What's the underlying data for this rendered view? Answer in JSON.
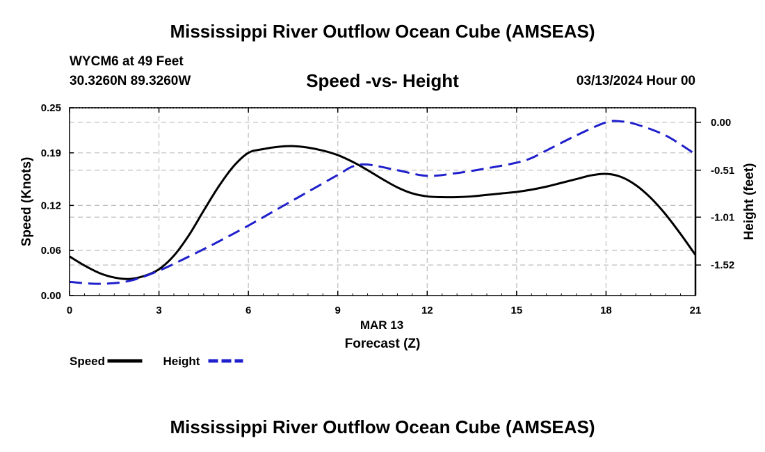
{
  "header": {
    "title": "Mississippi River Outflow Ocean Cube (AMSEAS)",
    "station": "WYCM6 at 49 Feet",
    "coords": "30.3260N  89.3260W",
    "subtitle": "Speed -vs- Height",
    "datetime": "03/13/2024 Hour 00"
  },
  "footer": {
    "title": "Mississippi River Outflow Ocean Cube (AMSEAS)"
  },
  "chart_data": {
    "type": "line",
    "title": "Speed -vs- Height",
    "xlabel_date": "MAR 13",
    "xlabel": "Forecast (Z)",
    "ylabel": "Speed (Knots)",
    "y2label": "Height (feet)",
    "xlim": [
      0,
      21
    ],
    "ylim": [
      0,
      0.25
    ],
    "y2lim": [
      -1.845,
      0.155
    ],
    "xticks": [
      0,
      3,
      6,
      9,
      12,
      15,
      18,
      21
    ],
    "xtick_labels": [
      "0",
      "3",
      "6",
      "9",
      "12",
      "15",
      "18",
      "21"
    ],
    "yticks": [
      0.0,
      0.06,
      0.12,
      0.19,
      0.25
    ],
    "ytick_labels": [
      "0.00",
      "0.06",
      "0.12",
      "0.19",
      "0.25"
    ],
    "y2ticks": [
      0.0,
      -0.51,
      -1.01,
      -1.52
    ],
    "y2tick_labels": [
      "0.00",
      "-0.51",
      "-1.01",
      "-1.52"
    ],
    "grid": true,
    "series": [
      {
        "name": "Speed",
        "axis": "left",
        "color": "#000000",
        "dash": "solid",
        "x": [
          0,
          0.5,
          1,
          1.5,
          2,
          2.5,
          3,
          3.5,
          4,
          4.5,
          5,
          5.5,
          6,
          6.5,
          7,
          7.5,
          8,
          8.5,
          9,
          9.5,
          10,
          10.5,
          11,
          11.5,
          12,
          12.5,
          13,
          13.5,
          14,
          14.5,
          15,
          15.5,
          16,
          16.5,
          17,
          17.5,
          18,
          18.5,
          19,
          19.5,
          20,
          20.5,
          21
        ],
        "values": [
          0.052,
          0.04,
          0.03,
          0.024,
          0.022,
          0.026,
          0.035,
          0.053,
          0.08,
          0.113,
          0.145,
          0.172,
          0.19,
          0.195,
          0.198,
          0.199,
          0.197,
          0.193,
          0.187,
          0.178,
          0.167,
          0.155,
          0.144,
          0.136,
          0.132,
          0.131,
          0.131,
          0.132,
          0.134,
          0.136,
          0.138,
          0.141,
          0.145,
          0.15,
          0.155,
          0.16,
          0.162,
          0.158,
          0.147,
          0.13,
          0.108,
          0.082,
          0.054
        ]
      },
      {
        "name": "Height",
        "axis": "right",
        "color": "#1f1fcc",
        "dash": "dashed",
        "x": [
          0,
          1,
          2,
          3,
          4,
          5,
          6,
          7,
          8,
          9,
          9.5,
          10,
          11,
          12,
          13,
          14,
          15,
          15.5,
          16,
          17,
          18,
          18.5,
          19,
          20,
          21
        ],
        "values": [
          -1.7,
          -1.72,
          -1.69,
          -1.58,
          -1.43,
          -1.27,
          -1.1,
          -0.92,
          -0.74,
          -0.56,
          -0.47,
          -0.45,
          -0.51,
          -0.57,
          -0.54,
          -0.49,
          -0.43,
          -0.38,
          -0.3,
          -0.14,
          0.0,
          0.01,
          -0.02,
          -0.14,
          -0.34
        ]
      }
    ],
    "legend": {
      "position": "bottom-left",
      "entries": [
        {
          "label": "Speed",
          "color": "#000000",
          "dash": "solid"
        },
        {
          "label": "Height",
          "color": "#1f1fcc",
          "dash": "dashed"
        }
      ]
    }
  }
}
